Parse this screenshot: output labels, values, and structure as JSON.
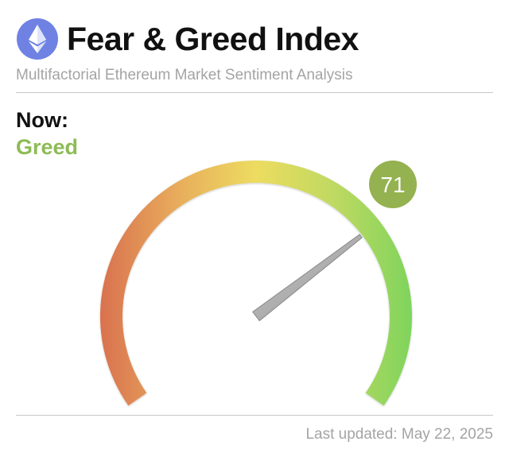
{
  "header": {
    "title": "Fear & Greed Index",
    "subtitle": "Multifactorial Ethereum Market Sentiment Analysis",
    "logo_icon": "ethereum-icon"
  },
  "current": {
    "label": "Now:",
    "status": "Greed",
    "status_color": "#8dbb56"
  },
  "gauge": {
    "value": 71,
    "value_label": "71",
    "min": 0,
    "max": 100,
    "badge_color": "#94b24f",
    "colors": [
      "#d9714f",
      "#e8ad5c",
      "#eddc60",
      "#bfd962",
      "#7fd45c"
    ]
  },
  "footer": {
    "last_updated": "Last updated: May 22, 2025"
  }
}
